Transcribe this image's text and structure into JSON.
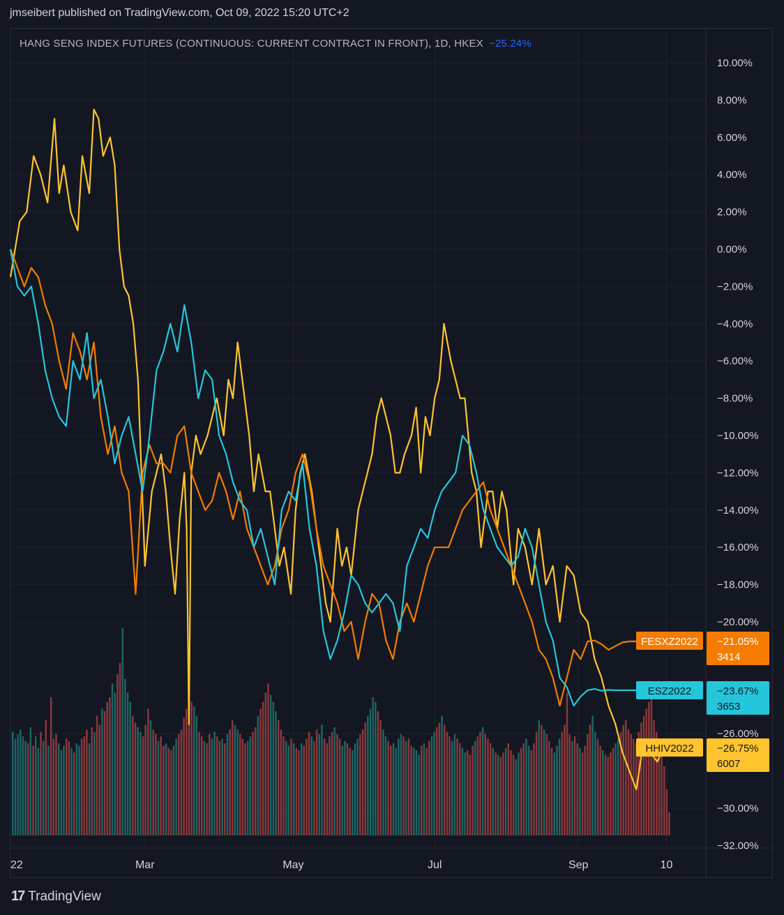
{
  "header": {
    "published": "jmseibert published on TradingView.com, Oct 09, 2022 15:20 UTC+2"
  },
  "footer": {
    "brand": "TradingView",
    "logo_text": "17"
  },
  "chart_data": {
    "type": "line",
    "title": "HANG SENG INDEX FUTURES (CONTINUOUS: CURRENT CONTRACT IN FRONT), 1D, HKEX",
    "title_change": "−25.24%",
    "title_change_color": "#2962ff",
    "background": "#131722",
    "grid": true,
    "x_ticks": [
      {
        "label": "22",
        "x": 0
      },
      {
        "label": "Mar",
        "x": 58
      },
      {
        "label": "May",
        "x": 122
      },
      {
        "label": "Jul",
        "x": 183
      },
      {
        "label": "Sep",
        "x": 245
      },
      {
        "label": "10",
        "x": 283
      }
    ],
    "x_range": [
      0,
      300
    ],
    "ylim": [
      -32,
      11
    ],
    "y_ticks": [
      10,
      8,
      6,
      4,
      2,
      0,
      -2,
      -4,
      -6,
      -8,
      -10,
      -12,
      -14,
      -16,
      -18,
      -20,
      -26,
      -30,
      -32
    ],
    "y_tick_labels": [
      "10.00%",
      "8.00%",
      "6.00%",
      "4.00%",
      "2.00%",
      "0.00%",
      "−2.00%",
      "−4.00%",
      "−6.00%",
      "−8.00%",
      "−10.00%",
      "−12.00%",
      "−14.00%",
      "−16.00%",
      "−18.00%",
      "−20.00%",
      "−26.00%",
      "−30.00%",
      "−32.00%"
    ],
    "series": [
      {
        "name": "HHIV2022",
        "color": "#ffc42e",
        "last_label": "−26.75%",
        "volume_label": "6007",
        "x": [
          0,
          4,
          7,
          10,
          13,
          16,
          19,
          21,
          23,
          26,
          29,
          31,
          34,
          36,
          38,
          40,
          43,
          45,
          47,
          49,
          51,
          53,
          55,
          58,
          61,
          63,
          65,
          67,
          69,
          71,
          73,
          75,
          76,
          77,
          78,
          80,
          82,
          85,
          87,
          89,
          92,
          94,
          96,
          98,
          101,
          103,
          105,
          107,
          110,
          112,
          114,
          116,
          118,
          121,
          123,
          125,
          127,
          130,
          132,
          134,
          136,
          138,
          141,
          143,
          145,
          147,
          150,
          152,
          154,
          156,
          158,
          160,
          162,
          164,
          166,
          168,
          170,
          173,
          175,
          177,
          179,
          181,
          183,
          185,
          187,
          190,
          192,
          194,
          196,
          199,
          201,
          203,
          206,
          208,
          210,
          212,
          214,
          217,
          219,
          222,
          225,
          228,
          231,
          234,
          237,
          240,
          243,
          246,
          249,
          252,
          255,
          258,
          261,
          264,
          267,
          270,
          273,
          276,
          279,
          282
        ],
        "y": [
          -1.5,
          1.5,
          2,
          5,
          4,
          2.5,
          7,
          3,
          4.5,
          2,
          1,
          5,
          3,
          7.5,
          7,
          5,
          6,
          4.5,
          0,
          -2,
          -2.5,
          -4,
          -7,
          -17,
          -13,
          -12,
          -11,
          -13,
          -16,
          -18.5,
          -14.5,
          -12,
          -15,
          -25.5,
          -12,
          -10,
          -11,
          -10,
          -9,
          -8,
          -10,
          -7,
          -8,
          -5,
          -8,
          -10,
          -13,
          -11,
          -13,
          -13,
          -15,
          -17,
          -16,
          -18.5,
          -14,
          -12,
          -11,
          -13,
          -15,
          -17,
          -19,
          -20,
          -15,
          -17,
          -16,
          -17.5,
          -14,
          -13,
          -12,
          -11,
          -9,
          -8,
          -9,
          -10,
          -12,
          -12,
          -11,
          -10,
          -8.5,
          -12,
          -9,
          -10,
          -8,
          -7,
          -4,
          -6,
          -7,
          -8,
          -8,
          -12,
          -13,
          -16,
          -13,
          -13,
          -15,
          -13,
          -14,
          -18,
          -15,
          -16,
          -18,
          -15,
          -18,
          -17,
          -20,
          -17,
          -17.5,
          -19.5,
          -20,
          -22,
          -23,
          -24.5,
          -25.5,
          -27,
          -28,
          -29,
          -26.5,
          -27,
          -27.5,
          -26.75
        ]
      },
      {
        "name": "FESXZ2022",
        "color": "#f57c00",
        "last_label": "−21.05%",
        "volume_label": "3414",
        "x": [
          0,
          3,
          6,
          9,
          12,
          15,
          18,
          21,
          24,
          27,
          30,
          33,
          36,
          39,
          42,
          45,
          48,
          51,
          54,
          57,
          60,
          63,
          66,
          69,
          72,
          75,
          78,
          81,
          84,
          87,
          90,
          93,
          96,
          99,
          102,
          105,
          108,
          111,
          114,
          117,
          120,
          123,
          126,
          129,
          132,
          135,
          138,
          141,
          144,
          147,
          150,
          153,
          156,
          159,
          162,
          165,
          168,
          171,
          174,
          177,
          180,
          183,
          186,
          189,
          192,
          195,
          198,
          201,
          204,
          207,
          210,
          213,
          216,
          219,
          222,
          225,
          228,
          231,
          234,
          237,
          240,
          243,
          246,
          249,
          252,
          255,
          258,
          261,
          264,
          267,
          270,
          273,
          276,
          279,
          282
        ],
        "y": [
          0,
          -1,
          -2,
          -1,
          -1.5,
          -3,
          -4,
          -6,
          -7.5,
          -4.5,
          -5.5,
          -7,
          -5,
          -9,
          -11,
          -9.5,
          -12,
          -13,
          -18.5,
          -12,
          -10.5,
          -11.5,
          -11.5,
          -12,
          -10,
          -9.5,
          -12,
          -13,
          -14,
          -13.5,
          -12,
          -13,
          -14.5,
          -13,
          -15,
          -16,
          -17,
          -18,
          -17,
          -15,
          -14,
          -12,
          -11,
          -12.5,
          -15,
          -17,
          -18,
          -19,
          -20.5,
          -20,
          -22,
          -20,
          -18.5,
          -19,
          -21,
          -22,
          -20,
          -19,
          -20,
          -18.5,
          -17,
          -16,
          -16,
          -16,
          -15,
          -14,
          -13.5,
          -13,
          -12.5,
          -14,
          -15,
          -16,
          -17,
          -18,
          -19,
          -20,
          -21.5,
          -22,
          -23,
          -24.5,
          -23,
          -21.5,
          -22,
          -21.05,
          -21,
          -21.2,
          -21.5,
          -21.3,
          -21.1,
          -21.05,
          -21.05,
          -21.05,
          -21.05,
          -21.05,
          -21.05
        ]
      },
      {
        "name": "ESZ2022",
        "color": "#26c6da",
        "last_label": "−23.67%",
        "volume_label": "3653",
        "x": [
          0,
          3,
          6,
          9,
          12,
          15,
          18,
          21,
          24,
          27,
          30,
          33,
          36,
          39,
          42,
          45,
          48,
          51,
          54,
          57,
          60,
          63,
          66,
          69,
          72,
          75,
          78,
          81,
          84,
          87,
          90,
          93,
          96,
          99,
          102,
          105,
          108,
          111,
          114,
          117,
          120,
          123,
          126,
          129,
          132,
          135,
          138,
          141,
          144,
          147,
          150,
          153,
          156,
          159,
          162,
          165,
          168,
          171,
          174,
          177,
          180,
          183,
          186,
          189,
          192,
          195,
          198,
          201,
          204,
          207,
          210,
          213,
          216,
          219,
          222,
          225,
          228,
          231,
          234,
          237,
          240,
          243,
          246,
          249,
          252,
          255,
          258,
          261,
          264,
          267,
          270,
          273,
          276,
          279,
          282
        ],
        "y": [
          0,
          -2,
          -2.5,
          -2,
          -4,
          -6.5,
          -8,
          -9,
          -9.5,
          -6,
          -7,
          -4.5,
          -8,
          -7,
          -9,
          -11.5,
          -10,
          -9,
          -11,
          -13,
          -10,
          -6.5,
          -5.5,
          -4,
          -5.5,
          -3,
          -5,
          -8,
          -6.5,
          -7,
          -10,
          -11,
          -12.5,
          -13.5,
          -14,
          -16,
          -15,
          -16.5,
          -18,
          -14,
          -13,
          -13.5,
          -11.5,
          -15,
          -17,
          -20.5,
          -22,
          -21,
          -19.5,
          -17.5,
          -18,
          -19,
          -19.5,
          -19,
          -18.5,
          -19,
          -20.5,
          -17,
          -16,
          -15,
          -15.5,
          -14,
          -13,
          -12.5,
          -12,
          -10,
          -10.5,
          -12,
          -14,
          -15,
          -16,
          -16.5,
          -17,
          -16.5,
          -15,
          -16,
          -18,
          -20,
          -21,
          -23,
          -23.5,
          -24.5,
          -24,
          -23.67,
          -23.6,
          -23.7,
          -23.65,
          -23.67,
          -23.67,
          -23.67,
          -23.67,
          -23.67,
          -23.67,
          -23.67,
          -23.67
        ]
      }
    ],
    "volume": {
      "up_color": "#26a69a",
      "down_color": "#ef5350",
      "bars": [
        0.45,
        0.42,
        0.44,
        0.46,
        0.43,
        0.41,
        0.4,
        0.47,
        0.39,
        0.43,
        0.38,
        0.45,
        0.41,
        0.5,
        0.39,
        0.6,
        0.42,
        0.44,
        0.4,
        0.37,
        0.39,
        0.42,
        0.41,
        0.38,
        0.36,
        0.4,
        0.39,
        0.42,
        0.43,
        0.46,
        0.4,
        0.47,
        0.45,
        0.52,
        0.48,
        0.55,
        0.54,
        0.58,
        0.6,
        0.66,
        0.62,
        0.7,
        0.75,
        0.9,
        0.68,
        0.62,
        0.58,
        0.52,
        0.49,
        0.47,
        0.45,
        0.43,
        0.48,
        0.55,
        0.5,
        0.46,
        0.44,
        0.41,
        0.43,
        0.39,
        0.4,
        0.38,
        0.37,
        0.39,
        0.42,
        0.44,
        0.46,
        0.51,
        0.55,
        0.62,
        0.58,
        0.56,
        0.52,
        0.45,
        0.43,
        0.41,
        0.4,
        0.44,
        0.42,
        0.45,
        0.43,
        0.41,
        0.42,
        0.4,
        0.44,
        0.46,
        0.5,
        0.48,
        0.46,
        0.44,
        0.42,
        0.4,
        0.41,
        0.43,
        0.45,
        0.47,
        0.52,
        0.55,
        0.58,
        0.62,
        0.66,
        0.61,
        0.58,
        0.54,
        0.5,
        0.46,
        0.43,
        0.41,
        0.39,
        0.42,
        0.4,
        0.38,
        0.37,
        0.4,
        0.39,
        0.42,
        0.45,
        0.43,
        0.41,
        0.46,
        0.44,
        0.48,
        0.42,
        0.4,
        0.43,
        0.45,
        0.47,
        0.44,
        0.42,
        0.39,
        0.41,
        0.4,
        0.38,
        0.37,
        0.4,
        0.42,
        0.44,
        0.46,
        0.49,
        0.52,
        0.55,
        0.6,
        0.58,
        0.54,
        0.5,
        0.46,
        0.43,
        0.41,
        0.39,
        0.4,
        0.38,
        0.42,
        0.44,
        0.43,
        0.41,
        0.42,
        0.39,
        0.38,
        0.37,
        0.35,
        0.39,
        0.4,
        0.38,
        0.41,
        0.43,
        0.45,
        0.47,
        0.49,
        0.52,
        0.48,
        0.45,
        0.43,
        0.41,
        0.44,
        0.42,
        0.4,
        0.38,
        0.36,
        0.37,
        0.35,
        0.39,
        0.41,
        0.43,
        0.45,
        0.47,
        0.44,
        0.42,
        0.4,
        0.38,
        0.36,
        0.35,
        0.34,
        0.36,
        0.38,
        0.4,
        0.37,
        0.35,
        0.33,
        0.36,
        0.38,
        0.4,
        0.42,
        0.39,
        0.37,
        0.4,
        0.45,
        0.5,
        0.48,
        0.46,
        0.44,
        0.41,
        0.38,
        0.36,
        0.39,
        0.42,
        0.45,
        0.48,
        0.62,
        0.44,
        0.41,
        0.43,
        0.4,
        0.38,
        0.36,
        0.39,
        0.44,
        0.48,
        0.52,
        0.45,
        0.42,
        0.39,
        0.37,
        0.35,
        0.34,
        0.36,
        0.38,
        0.4,
        0.42,
        0.45,
        0.48,
        0.5,
        0.46,
        0.44,
        0.42,
        0.4,
        0.45,
        0.49,
        0.52,
        0.55,
        0.58,
        0.62,
        0.5,
        0.45,
        0.4,
        0.36,
        0.3,
        0.2,
        0.1
      ],
      "up_mask": [
        1,
        1,
        1,
        1,
        1,
        1,
        0,
        1,
        0,
        1,
        1,
        0,
        1,
        0,
        1,
        0,
        0,
        0,
        1,
        1,
        1,
        0,
        0,
        1,
        0,
        1,
        1,
        0,
        0,
        0,
        1,
        0,
        1,
        0,
        0,
        1,
        0,
        0,
        0,
        1,
        1,
        0,
        0,
        1,
        1,
        1,
        1,
        0,
        0,
        1,
        1,
        0,
        0,
        0,
        1,
        0,
        0,
        1,
        0,
        0,
        1,
        0,
        0,
        1,
        1,
        0,
        0,
        0,
        0,
        0,
        0,
        1,
        1,
        0,
        0,
        1,
        0,
        0,
        1,
        1,
        0,
        0,
        1,
        0,
        1,
        0,
        0,
        1,
        1,
        0,
        0,
        0,
        1,
        1,
        0,
        0,
        1,
        0,
        0,
        0,
        0,
        1,
        1,
        1,
        0,
        0,
        0,
        1,
        1,
        0,
        1,
        0,
        0,
        1,
        0,
        0,
        0,
        1,
        0,
        0,
        1,
        1,
        0,
        0,
        0,
        0,
        1,
        0,
        0,
        1,
        1,
        0,
        0,
        1,
        1,
        1,
        0,
        0,
        0,
        1,
        1,
        1,
        1,
        0,
        0,
        1,
        1,
        0,
        0,
        1,
        1,
        1,
        1,
        0,
        1,
        0,
        0,
        1,
        1,
        1,
        0,
        1,
        0,
        0,
        1,
        1,
        0,
        0,
        1,
        0,
        0,
        0,
        1,
        1,
        0,
        0,
        1,
        1,
        0,
        0,
        0,
        1,
        0,
        0,
        1,
        0,
        0,
        0,
        1,
        0,
        1,
        0,
        0,
        1,
        0,
        0,
        0,
        1,
        1,
        0,
        0,
        1,
        1,
        0,
        0,
        0,
        1,
        0,
        1,
        0,
        0,
        0,
        1,
        1,
        1,
        0,
        0,
        0,
        0,
        1,
        0,
        0,
        1,
        0,
        0,
        0,
        0,
        1,
        1,
        0,
        0,
        1,
        0,
        0,
        0,
        0,
        1,
        1,
        0,
        0,
        0,
        0,
        0,
        0,
        0,
        0,
        0,
        0,
        0,
        0,
        0,
        0,
        0,
        0,
        0
      ]
    }
  }
}
